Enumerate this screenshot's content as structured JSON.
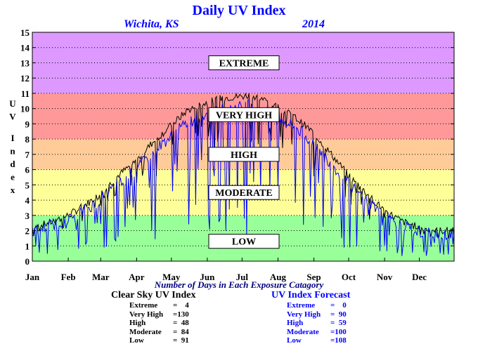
{
  "header": {
    "title": "Daily UV Index",
    "location": "Wichita, KS",
    "year": "2014"
  },
  "x_caption": "Number of Days in Each Exposure Catagory",
  "clear_sky": {
    "heading": "Clear Sky UV Index",
    "rows": [
      {
        "label": "Extreme",
        "value": "=    4"
      },
      {
        "label": "Very High",
        "value": "=130"
      },
      {
        "label": "High",
        "value": "=  48"
      },
      {
        "label": "Moderate",
        "value": "=  84"
      },
      {
        "label": "Low",
        "value": "=  91"
      }
    ]
  },
  "forecast": {
    "heading": "UV Index Forecast",
    "rows": [
      {
        "label": "Extreme",
        "value": "=    0"
      },
      {
        "label": "Very High",
        "value": "=  90"
      },
      {
        "label": "High",
        "value": "=  59"
      },
      {
        "label": "Moderate",
        "value": "=100"
      },
      {
        "label": "Low",
        "value": "=108"
      }
    ]
  },
  "chart_data": {
    "type": "line",
    "title": "Daily UV Index",
    "ylabel": "UV Index",
    "xlabel": "",
    "ylim": [
      0,
      15
    ],
    "yticks": [
      0,
      1,
      2,
      3,
      4,
      5,
      6,
      7,
      8,
      9,
      10,
      11,
      12,
      13,
      14,
      15
    ],
    "xlim": [
      1,
      365
    ],
    "month_labels": [
      "Jan",
      "Feb",
      "Mar",
      "Apr",
      "May",
      "Jun",
      "Jul",
      "Aug",
      "Sep",
      "Oct",
      "Nov",
      "Dec"
    ],
    "month_starts": [
      1,
      32,
      60,
      91,
      121,
      152,
      182,
      213,
      244,
      274,
      305,
      335
    ],
    "grid": true,
    "bands": [
      {
        "name": "LOW",
        "from": 0,
        "to": 3,
        "color": "#99ff99"
      },
      {
        "name": "MODERATE",
        "from": 3,
        "to": 6,
        "color": "#ffff99"
      },
      {
        "name": "HIGH",
        "from": 6,
        "to": 8,
        "color": "#ffcc99"
      },
      {
        "name": "VERY HIGH",
        "from": 8,
        "to": 11,
        "color": "#ff9999"
      },
      {
        "name": "EXTREME",
        "from": 11,
        "to": 15,
        "color": "#dd99ff"
      }
    ],
    "series": [
      {
        "color": "#000000",
        "x": [
          1,
          15,
          32,
          45,
          60,
          75,
          91,
          105,
          121,
          135,
          152,
          165,
          182,
          190,
          200,
          213,
          228,
          244,
          258,
          274,
          290,
          305,
          320,
          335,
          350,
          365
        ],
        "y": [
          2.2,
          2.5,
          3.0,
          3.6,
          4.4,
          5.6,
          6.6,
          7.8,
          8.9,
          9.9,
          10.4,
          10.7,
          10.8,
          10.9,
          10.6,
          10.1,
          9.4,
          8.4,
          7.1,
          5.6,
          4.4,
          3.3,
          2.6,
          2.2,
          2.0,
          2.0
        ]
      },
      {
        "color": "#0000ff",
        "x": [
          1,
          15,
          32,
          45,
          60,
          75,
          91,
          105,
          121,
          135,
          152,
          165,
          182,
          190,
          200,
          213,
          228,
          244,
          258,
          274,
          290,
          305,
          320,
          335,
          350,
          365
        ],
        "y": [
          2.0,
          2.3,
          2.7,
          3.3,
          4.0,
          5.1,
          6.0,
          7.2,
          8.2,
          9.1,
          9.6,
          10.0,
          10.1,
          10.3,
          10.0,
          9.4,
          8.8,
          7.7,
          6.5,
          5.1,
          4.0,
          3.0,
          2.3,
          1.9,
          1.7,
          1.8
        ]
      }
    ]
  }
}
